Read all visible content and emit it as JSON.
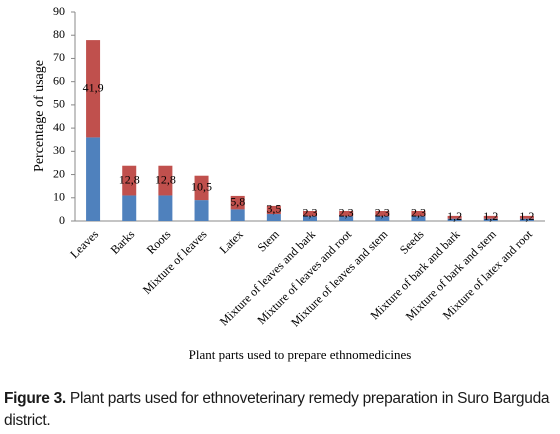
{
  "chart_data": {
    "type": "bar",
    "stacked": true,
    "y_label": "Percentage of usage",
    "x_label": "Plant parts used to prepare ethnomedicines",
    "categories": [
      "Leaves",
      "Barks",
      "Roots",
      "Mixture of leaves",
      "Latex",
      "Stem",
      "Mixture of leaves and bark",
      "Mixture of leaves and root",
      "Mixture of leaves and stem",
      "Seeds",
      "Mixture of bark and bark",
      "Mixture of bark and stem",
      "Mixture of latex and root"
    ],
    "series": [
      {
        "color": "#4f81bd",
        "values": [
          36,
          11,
          11,
          9,
          5,
          3,
          2,
          2,
          2,
          2,
          1,
          1,
          1
        ]
      },
      {
        "color": "#c0504d",
        "values": [
          41.9,
          12.8,
          12.8,
          10.5,
          5.8,
          3.5,
          2.3,
          2.3,
          2.3,
          2.3,
          1.2,
          1.2,
          1.2
        ],
        "value_labels": [
          "41,9",
          "12,8",
          "12,8",
          "10,5",
          "5,8",
          "3,5",
          "2,3",
          "2,3",
          "2,3",
          "2,3",
          "1,2",
          "1,2",
          "1,2"
        ]
      }
    ],
    "ylim": [
      0,
      90
    ],
    "yticks": [
      0,
      10,
      20,
      30,
      40,
      50,
      60,
      70,
      80,
      90
    ],
    "grid": false
  },
  "caption": {
    "label": "Figure 3.",
    "text": "Plant parts used for ethnoveterinary remedy preparation in Suro Barguda district."
  }
}
